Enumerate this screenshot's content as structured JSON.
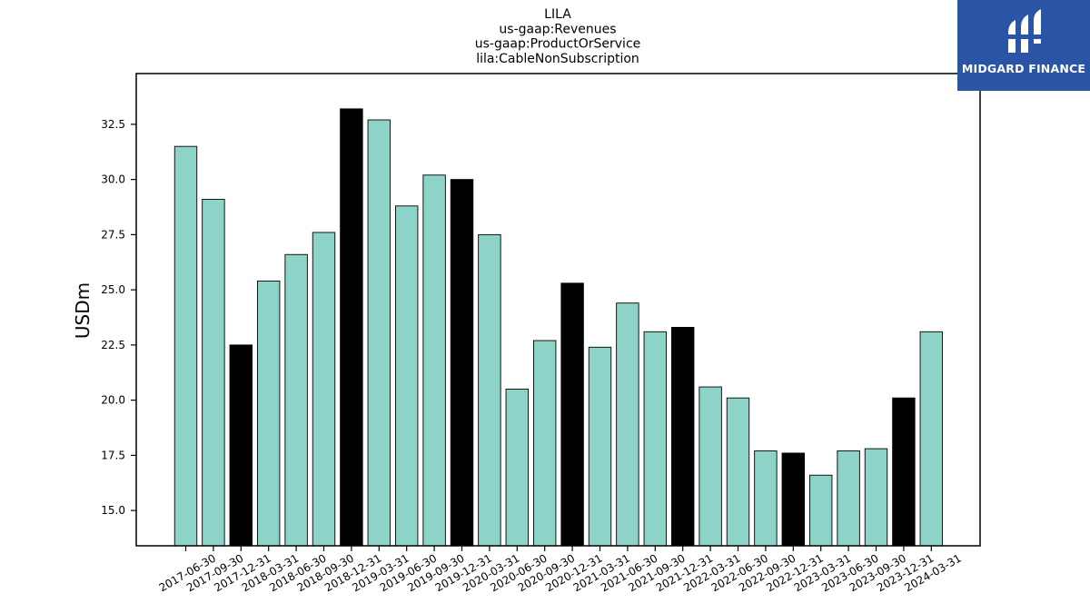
{
  "chart_data": {
    "type": "bar",
    "title_lines": [
      "LILA",
      "us-gaap:Revenues",
      "us-gaap:ProductOrService",
      "lila:CableNonSubscription"
    ],
    "ylabel": "USDm",
    "xlabel": "",
    "ylim": [
      13.4,
      34.8
    ],
    "yticks": [
      "15.0",
      "17.5",
      "20.0",
      "22.5",
      "25.0",
      "27.5",
      "30.0",
      "32.5"
    ],
    "categories": [
      "2017-06-30",
      "2017-09-30",
      "2017-12-31",
      "2018-03-31",
      "2018-06-30",
      "2018-09-30",
      "2018-12-31",
      "2019-03-31",
      "2019-06-30",
      "2019-09-30",
      "2019-12-31",
      "2020-03-31",
      "2020-06-30",
      "2020-09-30",
      "2020-12-31",
      "2021-03-31",
      "2021-06-30",
      "2021-09-30",
      "2021-12-31",
      "2022-03-31",
      "2022-06-30",
      "2022-09-30",
      "2022-12-31",
      "2023-03-31",
      "2023-06-30",
      "2023-09-30",
      "2023-12-31",
      "2024-03-31"
    ],
    "values": [
      31.5,
      29.1,
      22.5,
      25.4,
      26.6,
      27.6,
      33.2,
      32.7,
      28.8,
      30.2,
      30.0,
      27.5,
      20.5,
      22.7,
      25.3,
      22.4,
      24.4,
      23.1,
      23.3,
      20.6,
      20.1,
      17.7,
      17.6,
      16.6,
      17.7,
      17.8,
      20.1,
      23.1
    ],
    "highlight": [
      false,
      false,
      true,
      false,
      false,
      false,
      true,
      false,
      false,
      false,
      true,
      false,
      false,
      false,
      true,
      false,
      false,
      false,
      true,
      false,
      false,
      false,
      true,
      false,
      false,
      false,
      true,
      false
    ],
    "colors": {
      "bar": "#8dd3c7",
      "highlight": "#000000",
      "edge": "#000000"
    },
    "grid": false
  },
  "logo": {
    "text": "MIDGARD FINANCE",
    "background": "#2a55a6"
  }
}
